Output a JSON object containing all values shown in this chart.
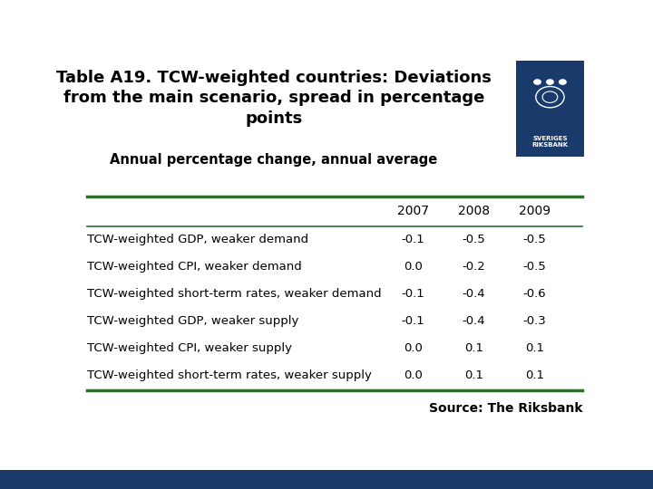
{
  "title": "Table A19. TCW-weighted countries: Deviations\nfrom the main scenario, spread in percentage\npoints",
  "subtitle": "Annual percentage change, annual average",
  "columns": [
    "",
    "2007",
    "2008",
    "2009"
  ],
  "rows": [
    [
      "TCW-weighted GDP, weaker demand",
      "-0.1",
      "-0.5",
      "-0.5"
    ],
    [
      "TCW-weighted CPI, weaker demand",
      "0.0",
      "-0.2",
      "-0.5"
    ],
    [
      "TCW-weighted short-term rates, weaker demand",
      "-0.1",
      "-0.4",
      "-0.6"
    ],
    [
      "TCW-weighted GDP, weaker supply",
      "-0.1",
      "-0.4",
      "-0.3"
    ],
    [
      "TCW-weighted CPI, weaker supply",
      "0.0",
      "0.1",
      "0.1"
    ],
    [
      "TCW-weighted short-term rates, weaker supply",
      "0.0",
      "0.1",
      "0.1"
    ]
  ],
  "source_text": "Source: The Riksbank",
  "header_line_color": "#2d6e2d",
  "bottom_line_color": "#2d6e2d",
  "footer_bar_color": "#1a3a6b",
  "logo_box_color": "#1a3a6b",
  "bg_color": "#ffffff",
  "title_fontsize": 13,
  "subtitle_fontsize": 10.5,
  "header_fontsize": 10,
  "row_fontsize": 9.5,
  "source_fontsize": 10
}
